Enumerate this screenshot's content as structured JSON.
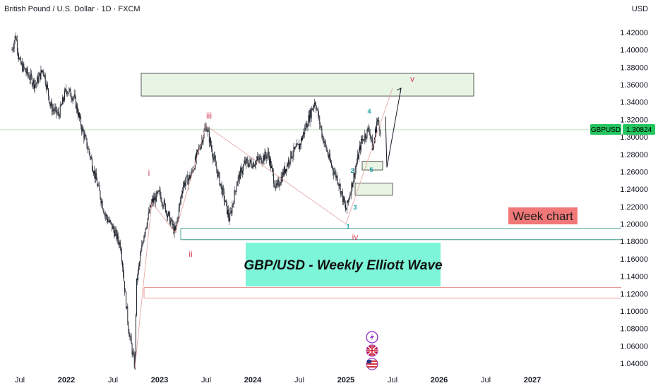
{
  "header": {
    "title": "British Pound / U.S. Dollar · 1D · FXCM",
    "currency": "USD"
  },
  "price_tag": {
    "symbol": "GBPUSD",
    "value": "1.30824",
    "color": "#22c55e"
  },
  "annotations": {
    "week_chart": "Week chart",
    "banner": "GBP/USD - Weekly Elliott Wave"
  },
  "colors": {
    "candle": "#131722",
    "zone_green": "#e8f5e4",
    "zone_red_line": "#e88a8a",
    "wave_red": "#d2405a",
    "wave_teal": "#1a9ea3",
    "banner_bg": "#7df5d8",
    "week_bg": "#f07878"
  },
  "icons": [
    "lightning-icon",
    "uk-flag-icon",
    "us-flag-icon"
  ],
  "chart_data": {
    "type": "candlestick",
    "title": "",
    "y_ticks": [
      "1.42000",
      "1.40000",
      "1.38000",
      "1.36000",
      "1.34000",
      "1.32000",
      "1.30000",
      "1.28000",
      "1.26000",
      "1.24000",
      "1.22000",
      "1.20000",
      "1.18000",
      "1.16000",
      "1.14000",
      "1.12000",
      "1.10000",
      "1.08000",
      "1.06000",
      "1.04000"
    ],
    "x_ticks": [
      "Jul",
      "2022",
      "Jul",
      "2023",
      "Jul",
      "2024",
      "Jul",
      "2025",
      "Jul",
      "2026",
      "Jul",
      "2027"
    ],
    "ylim": [
      1.03,
      1.435
    ],
    "price_path": [
      [
        "2021-06",
        1.4
      ],
      [
        "2021-06-15",
        1.417
      ],
      [
        "2021-07",
        1.385
      ],
      [
        "2021-08",
        1.372
      ],
      [
        "2021-09",
        1.36
      ],
      [
        "2021-10",
        1.378
      ],
      [
        "2021-11",
        1.335
      ],
      [
        "2021-12",
        1.325
      ],
      [
        "2022-01",
        1.355
      ],
      [
        "2022-02",
        1.345
      ],
      [
        "2022-03",
        1.31
      ],
      [
        "2022-04",
        1.28
      ],
      [
        "2022-05",
        1.245
      ],
      [
        "2022-06",
        1.21
      ],
      [
        "2022-07",
        1.195
      ],
      [
        "2022-08",
        1.175
      ],
      [
        "2022-09",
        1.08
      ],
      [
        "2022-09-26",
        1.035
      ],
      [
        "2022-10",
        1.13
      ],
      [
        "2022-11",
        1.19
      ],
      [
        "2022-12",
        1.225
      ],
      [
        "2023-01",
        1.235
      ],
      [
        "2023-03",
        1.19
      ],
      [
        "2023-04",
        1.245
      ],
      [
        "2023-05",
        1.255
      ],
      [
        "2023-07",
        1.313
      ],
      [
        "2023-08",
        1.275
      ],
      [
        "2023-10",
        1.205
      ],
      [
        "2023-11",
        1.25
      ],
      [
        "2023-12",
        1.27
      ],
      [
        "2024-01",
        1.27
      ],
      [
        "2024-03",
        1.28
      ],
      [
        "2024-04",
        1.24
      ],
      [
        "2024-06",
        1.28
      ],
      [
        "2024-07",
        1.29
      ],
      [
        "2024-09",
        1.342
      ],
      [
        "2024-10",
        1.3
      ],
      [
        "2024-11",
        1.27
      ],
      [
        "2024-12",
        1.25
      ],
      [
        "2025-01",
        1.215
      ],
      [
        "2025-02",
        1.255
      ],
      [
        "2025-03",
        1.295
      ],
      [
        "2025-04",
        1.31
      ],
      [
        "2025-04-15",
        1.285
      ],
      [
        "2025-05",
        1.32
      ],
      [
        "2025-05-15",
        1.308
      ]
    ],
    "zones": [
      {
        "type": "supply-box",
        "y_top": 1.373,
        "y_bottom": 1.347
      },
      {
        "type": "support-band",
        "y_top": 1.195,
        "y_bottom": 1.182
      },
      {
        "type": "demand-line-pair",
        "y_top": 1.127,
        "y_bottom": 1.115
      },
      {
        "type": "small-box",
        "y_top": 1.272,
        "y_bottom": 1.262
      },
      {
        "type": "small-box",
        "y_top": 1.247,
        "y_bottom": 1.233
      }
    ],
    "wave_labels_major": [
      "i",
      "ii",
      "iii",
      "iv",
      "v"
    ],
    "wave_labels_minor": [
      "1",
      "2",
      "3",
      "4",
      "5"
    ],
    "projection": [
      [
        "2025-05",
        1.32
      ],
      [
        "2025-06",
        1.265
      ],
      [
        "2025-07",
        1.356
      ]
    ]
  }
}
